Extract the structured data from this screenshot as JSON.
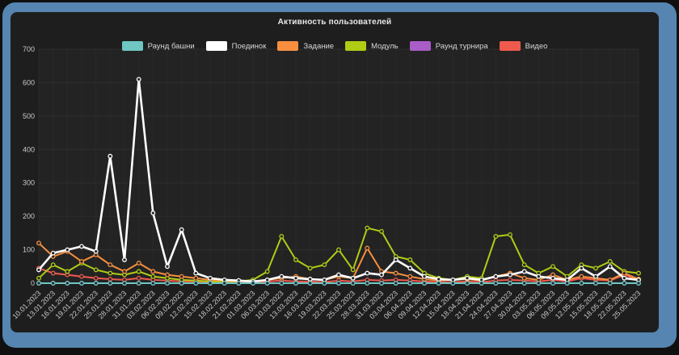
{
  "frame": {
    "border_color": "#5585b0",
    "panel_color": "#1e1e1e"
  },
  "chart_data": {
    "type": "line",
    "title": "Активность пользователей",
    "xlabel": "",
    "ylabel": "",
    "ylim": [
      0,
      700
    ],
    "yticks": [
      0,
      100,
      200,
      300,
      400,
      500,
      600,
      700
    ],
    "grid": true,
    "legend_position": "top",
    "x_labels": [
      "10.01.2023",
      "13.01.2023",
      "16.01.2023",
      "19.01.2023",
      "22.01.2023",
      "25.01.2023",
      "28.01.2023",
      "31.01.2023",
      "03.02.2023",
      "06.02.2023",
      "09.02.2023",
      "12.02.2023",
      "15.02.2023",
      "18.02.2023",
      "21.02.2023",
      "01.03.2023",
      "06.03.2023",
      "10.03.2023",
      "13.03.2023",
      "16.03.2023",
      "19.03.2023",
      "22.03.2023",
      "25.03.2023",
      "28.03.2023",
      "31.03.2023",
      "03.04.2023",
      "06.04.2023",
      "09.04.2023",
      "12.04.2023",
      "15.04.2023",
      "18.04.2023",
      "21.04.2023",
      "24.04.2023",
      "27.04.2023",
      "30.04.2023",
      "03.05.2023",
      "06.05.2023",
      "09.05.2023",
      "12.05.2023",
      "15.05.2023",
      "18.05.2023",
      "22.05.2023",
      "25.05.2023"
    ],
    "series": [
      {
        "name": "Раунд башни",
        "color": "#6fc7c3",
        "values": [
          0,
          0,
          0,
          0,
          0,
          0,
          0,
          0,
          0,
          0,
          0,
          0,
          0,
          0,
          0,
          0,
          0,
          0,
          0,
          0,
          0,
          0,
          0,
          0,
          0,
          0,
          0,
          0,
          0,
          0,
          0,
          0,
          0,
          0,
          0,
          0,
          0,
          0,
          0,
          0,
          0,
          0,
          0
        ]
      },
      {
        "name": "Поединок",
        "color": "#ffffff",
        "values": [
          40,
          90,
          100,
          110,
          95,
          380,
          70,
          610,
          210,
          50,
          160,
          30,
          15,
          10,
          8,
          5,
          10,
          20,
          15,
          12,
          10,
          25,
          15,
          30,
          25,
          70,
          45,
          20,
          12,
          10,
          15,
          10,
          20,
          25,
          35,
          20,
          15,
          10,
          45,
          20,
          50,
          15,
          10
        ]
      },
      {
        "name": "Задание",
        "color": "#f78f3f",
        "values": [
          120,
          80,
          95,
          65,
          85,
          55,
          35,
          60,
          35,
          25,
          20,
          15,
          10,
          8,
          5,
          5,
          10,
          15,
          20,
          12,
          10,
          20,
          15,
          105,
          35,
          30,
          20,
          12,
          8,
          10,
          12,
          8,
          20,
          30,
          15,
          10,
          25,
          10,
          20,
          15,
          10,
          30,
          12
        ]
      },
      {
        "name": "Модуль",
        "color": "#b1cc15",
        "values": [
          15,
          55,
          35,
          60,
          40,
          30,
          25,
          35,
          20,
          15,
          10,
          8,
          5,
          5,
          5,
          10,
          35,
          140,
          70,
          45,
          55,
          100,
          40,
          165,
          155,
          80,
          70,
          30,
          15,
          10,
          20,
          15,
          140,
          145,
          55,
          30,
          50,
          20,
          55,
          45,
          65,
          35,
          30
        ]
      },
      {
        "name": "Раунд турнира",
        "color": "#a95dc7",
        "values": [
          0,
          0,
          0,
          0,
          0,
          0,
          0,
          0,
          0,
          0,
          0,
          0,
          0,
          0,
          0,
          0,
          0,
          0,
          0,
          0,
          0,
          0,
          0,
          0,
          0,
          0,
          0,
          0,
          0,
          0,
          0,
          0,
          0,
          0,
          0,
          0,
          0,
          0,
          0,
          0,
          0,
          0,
          0
        ]
      },
      {
        "name": "Видео",
        "color": "#ef5a4d",
        "values": [
          45,
          30,
          25,
          20,
          15,
          12,
          10,
          15,
          10,
          8,
          5,
          5,
          3,
          3,
          2,
          2,
          5,
          8,
          5,
          5,
          3,
          8,
          5,
          10,
          8,
          10,
          8,
          5,
          3,
          3,
          5,
          3,
          8,
          10,
          8,
          5,
          10,
          5,
          15,
          10,
          8,
          25,
          10
        ]
      }
    ]
  }
}
